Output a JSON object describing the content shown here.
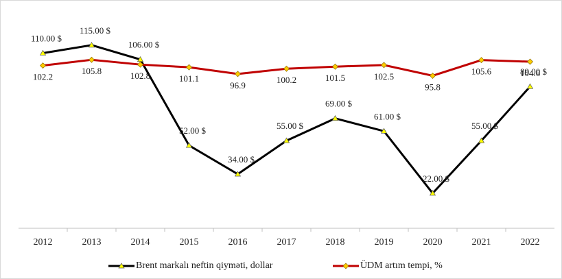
{
  "chart_data": {
    "type": "line",
    "categories": [
      "2012",
      "2013",
      "2014",
      "2015",
      "2016",
      "2017",
      "2018",
      "2019",
      "2020",
      "2021",
      "2022"
    ],
    "ylim": [
      0,
      130
    ],
    "series": [
      {
        "name": "Brent markalı  neftin qiyməti,  dollar",
        "color": "#000000",
        "marker_color": "#ffff00",
        "values": [
          110,
          115,
          106,
          52,
          34,
          55,
          69,
          61,
          22,
          55,
          89
        ],
        "value_labels": [
          "110.00  $",
          "115.00  $",
          "106.00  $",
          "52.00  $",
          "34.00  $",
          "55.00  $",
          "69.00  $",
          "61.00  $",
          "22.00  $",
          "55.00  $",
          "89.00  $"
        ]
      },
      {
        "name": "ÜDM artım tempi, %",
        "color": "#c00000",
        "marker_color": "#ffcc00",
        "values": [
          102.2,
          105.8,
          102.8,
          101.1,
          96.9,
          100.2,
          101.5,
          102.5,
          95.8,
          105.6,
          104.6
        ],
        "value_labels": [
          "102.2",
          "105.8",
          "102.8",
          "101.1",
          "96.9",
          "100.2",
          "101.5",
          "102.5",
          "95.8",
          "105.6",
          "104.6"
        ]
      }
    ]
  }
}
